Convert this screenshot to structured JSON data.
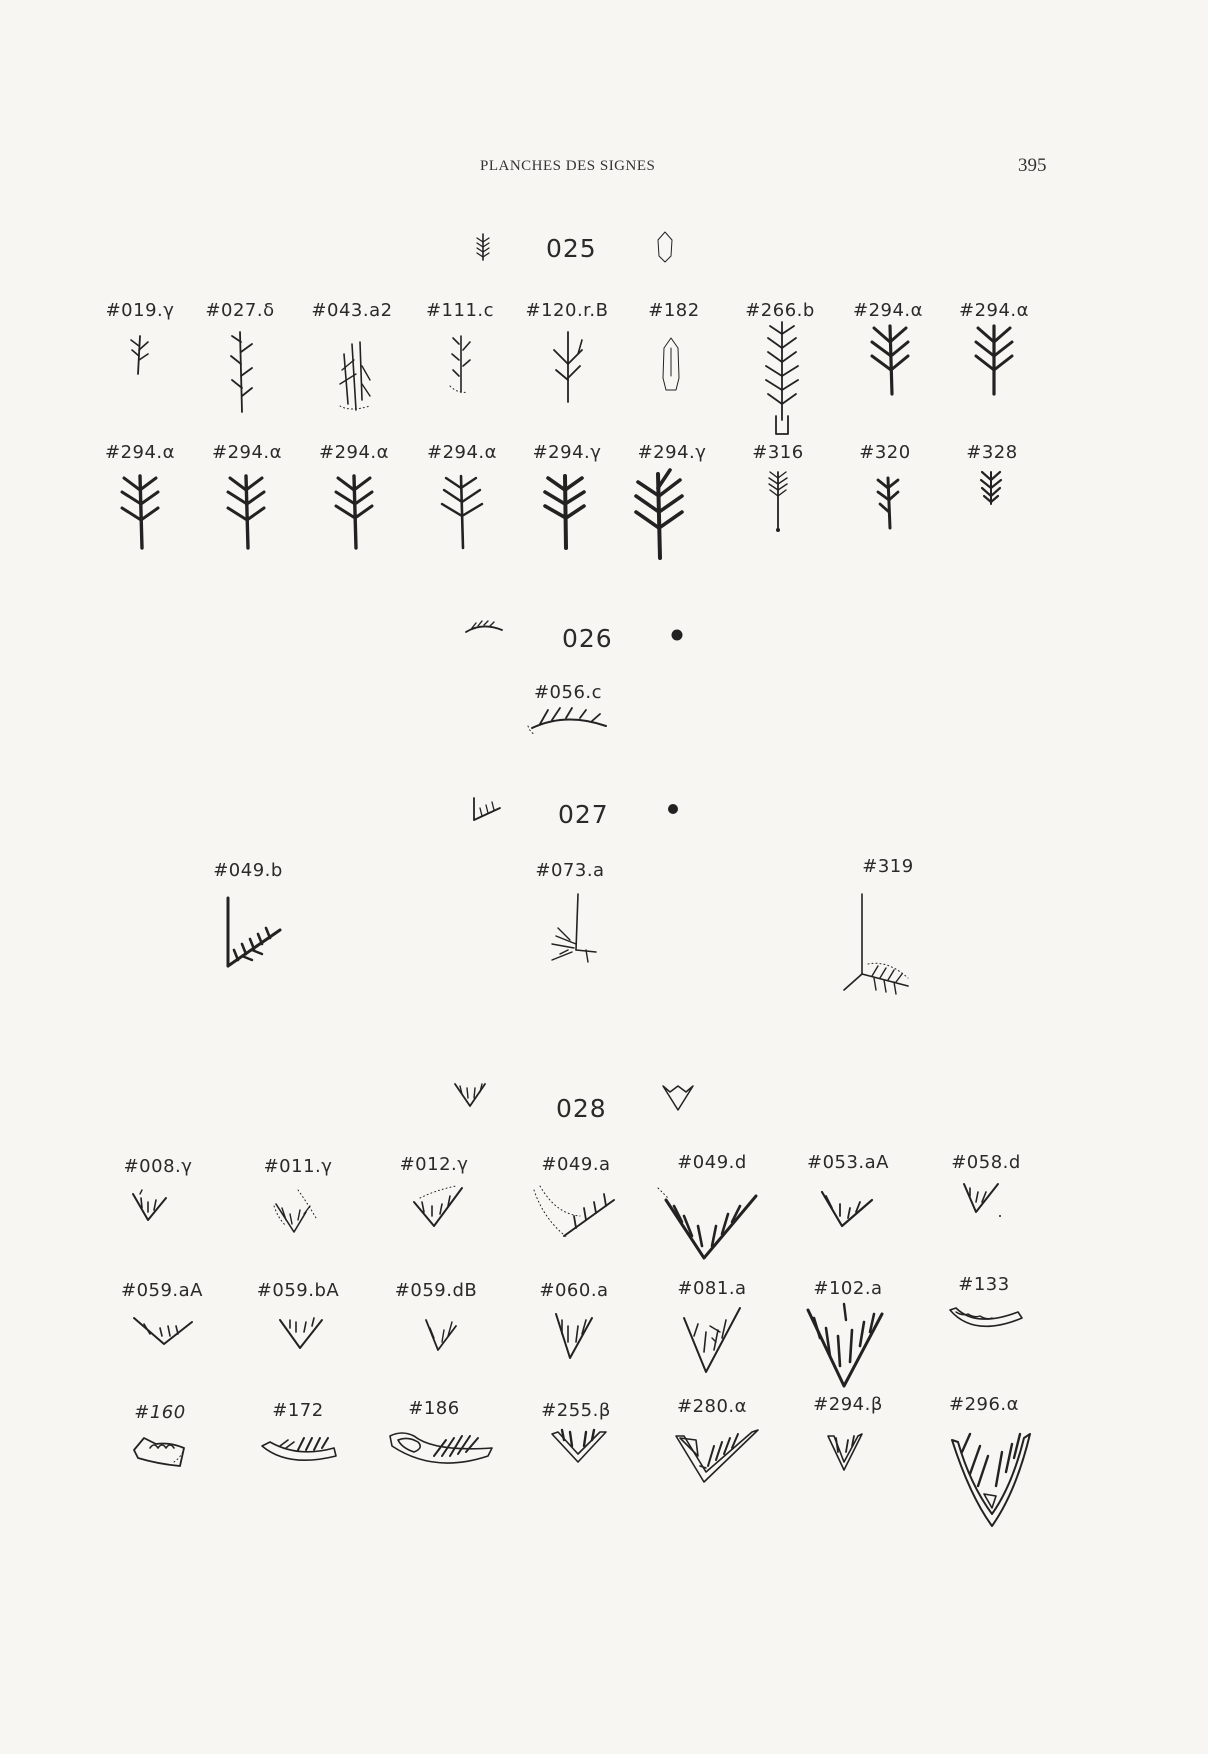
{
  "header": {
    "title": "PLANCHES DES SIGNES",
    "page_number": "395"
  },
  "sections": [
    {
      "number": "025",
      "labels": [
        "#019.γ",
        "#027.δ",
        "#043.a2",
        "#111.c",
        "#120.r.B",
        "#182",
        "#266.b",
        "#294.α",
        "#294.α",
        "#294.α",
        "#294.α",
        "#294.α",
        "#294.α",
        "#294.γ",
        "#294.γ",
        "#316",
        "#320",
        "#328"
      ]
    },
    {
      "number": "026",
      "labels": [
        "#056.c"
      ]
    },
    {
      "number": "027",
      "labels": [
        "#049.b",
        "#073.a",
        "#319"
      ]
    },
    {
      "number": "028",
      "labels": [
        "#008.γ",
        "#011.γ",
        "#012.γ",
        "#049.a",
        "#049.d",
        "#053.aA",
        "#058.d",
        "#059.aA",
        "#059.bA",
        "#059.dB",
        "#060.a",
        "#081.a",
        "#102.a",
        "#133",
        "#160",
        "#172",
        "#186",
        "#255.β",
        "#280.α",
        "#294.β",
        "#296.α"
      ]
    }
  ]
}
